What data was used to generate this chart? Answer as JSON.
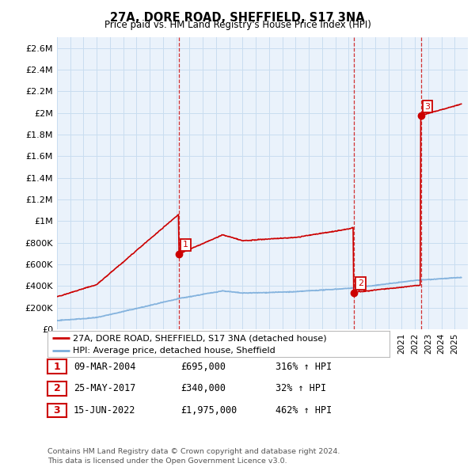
{
  "title": "27A, DORE ROAD, SHEFFIELD, S17 3NA",
  "subtitle": "Price paid vs. HM Land Registry's House Price Index (HPI)",
  "ylabel_ticks": [
    "£0",
    "£200K",
    "£400K",
    "£600K",
    "£800K",
    "£1M",
    "£1.2M",
    "£1.4M",
    "£1.6M",
    "£1.8M",
    "£2M",
    "£2.2M",
    "£2.4M",
    "£2.6M"
  ],
  "ytick_values": [
    0,
    200000,
    400000,
    600000,
    800000,
    1000000,
    1200000,
    1400000,
    1600000,
    1800000,
    2000000,
    2200000,
    2400000,
    2600000
  ],
  "ylim": [
    0,
    2700000
  ],
  "xlim_start": 1995,
  "xlim_end": 2026,
  "sale_color": "#cc0000",
  "hpi_color": "#7aaddb",
  "grid_color": "#c8ddf0",
  "background_color": "#eaf2fb",
  "sale_points": [
    {
      "year": 2004.2,
      "price": 695000,
      "label": "1"
    },
    {
      "year": 2017.4,
      "price": 340000,
      "label": "2"
    },
    {
      "year": 2022.45,
      "price": 1975000,
      "label": "3"
    }
  ],
  "legend_sale_label": "27A, DORE ROAD, SHEFFIELD, S17 3NA (detached house)",
  "legend_hpi_label": "HPI: Average price, detached house, Sheffield",
  "table_rows": [
    {
      "num": "1",
      "date": "09-MAR-2004",
      "price": "£695,000",
      "change": "316% ↑ HPI"
    },
    {
      "num": "2",
      "date": "25-MAY-2017",
      "price": "£340,000",
      "change": "32% ↑ HPI"
    },
    {
      "num": "3",
      "date": "15-JUN-2022",
      "price": "£1,975,000",
      "change": "462% ↑ HPI"
    }
  ],
  "footer": "Contains HM Land Registry data © Crown copyright and database right 2024.\nThis data is licensed under the Open Government Licence v3.0.",
  "vline_years": [
    2004.2,
    2017.4,
    2022.45
  ]
}
